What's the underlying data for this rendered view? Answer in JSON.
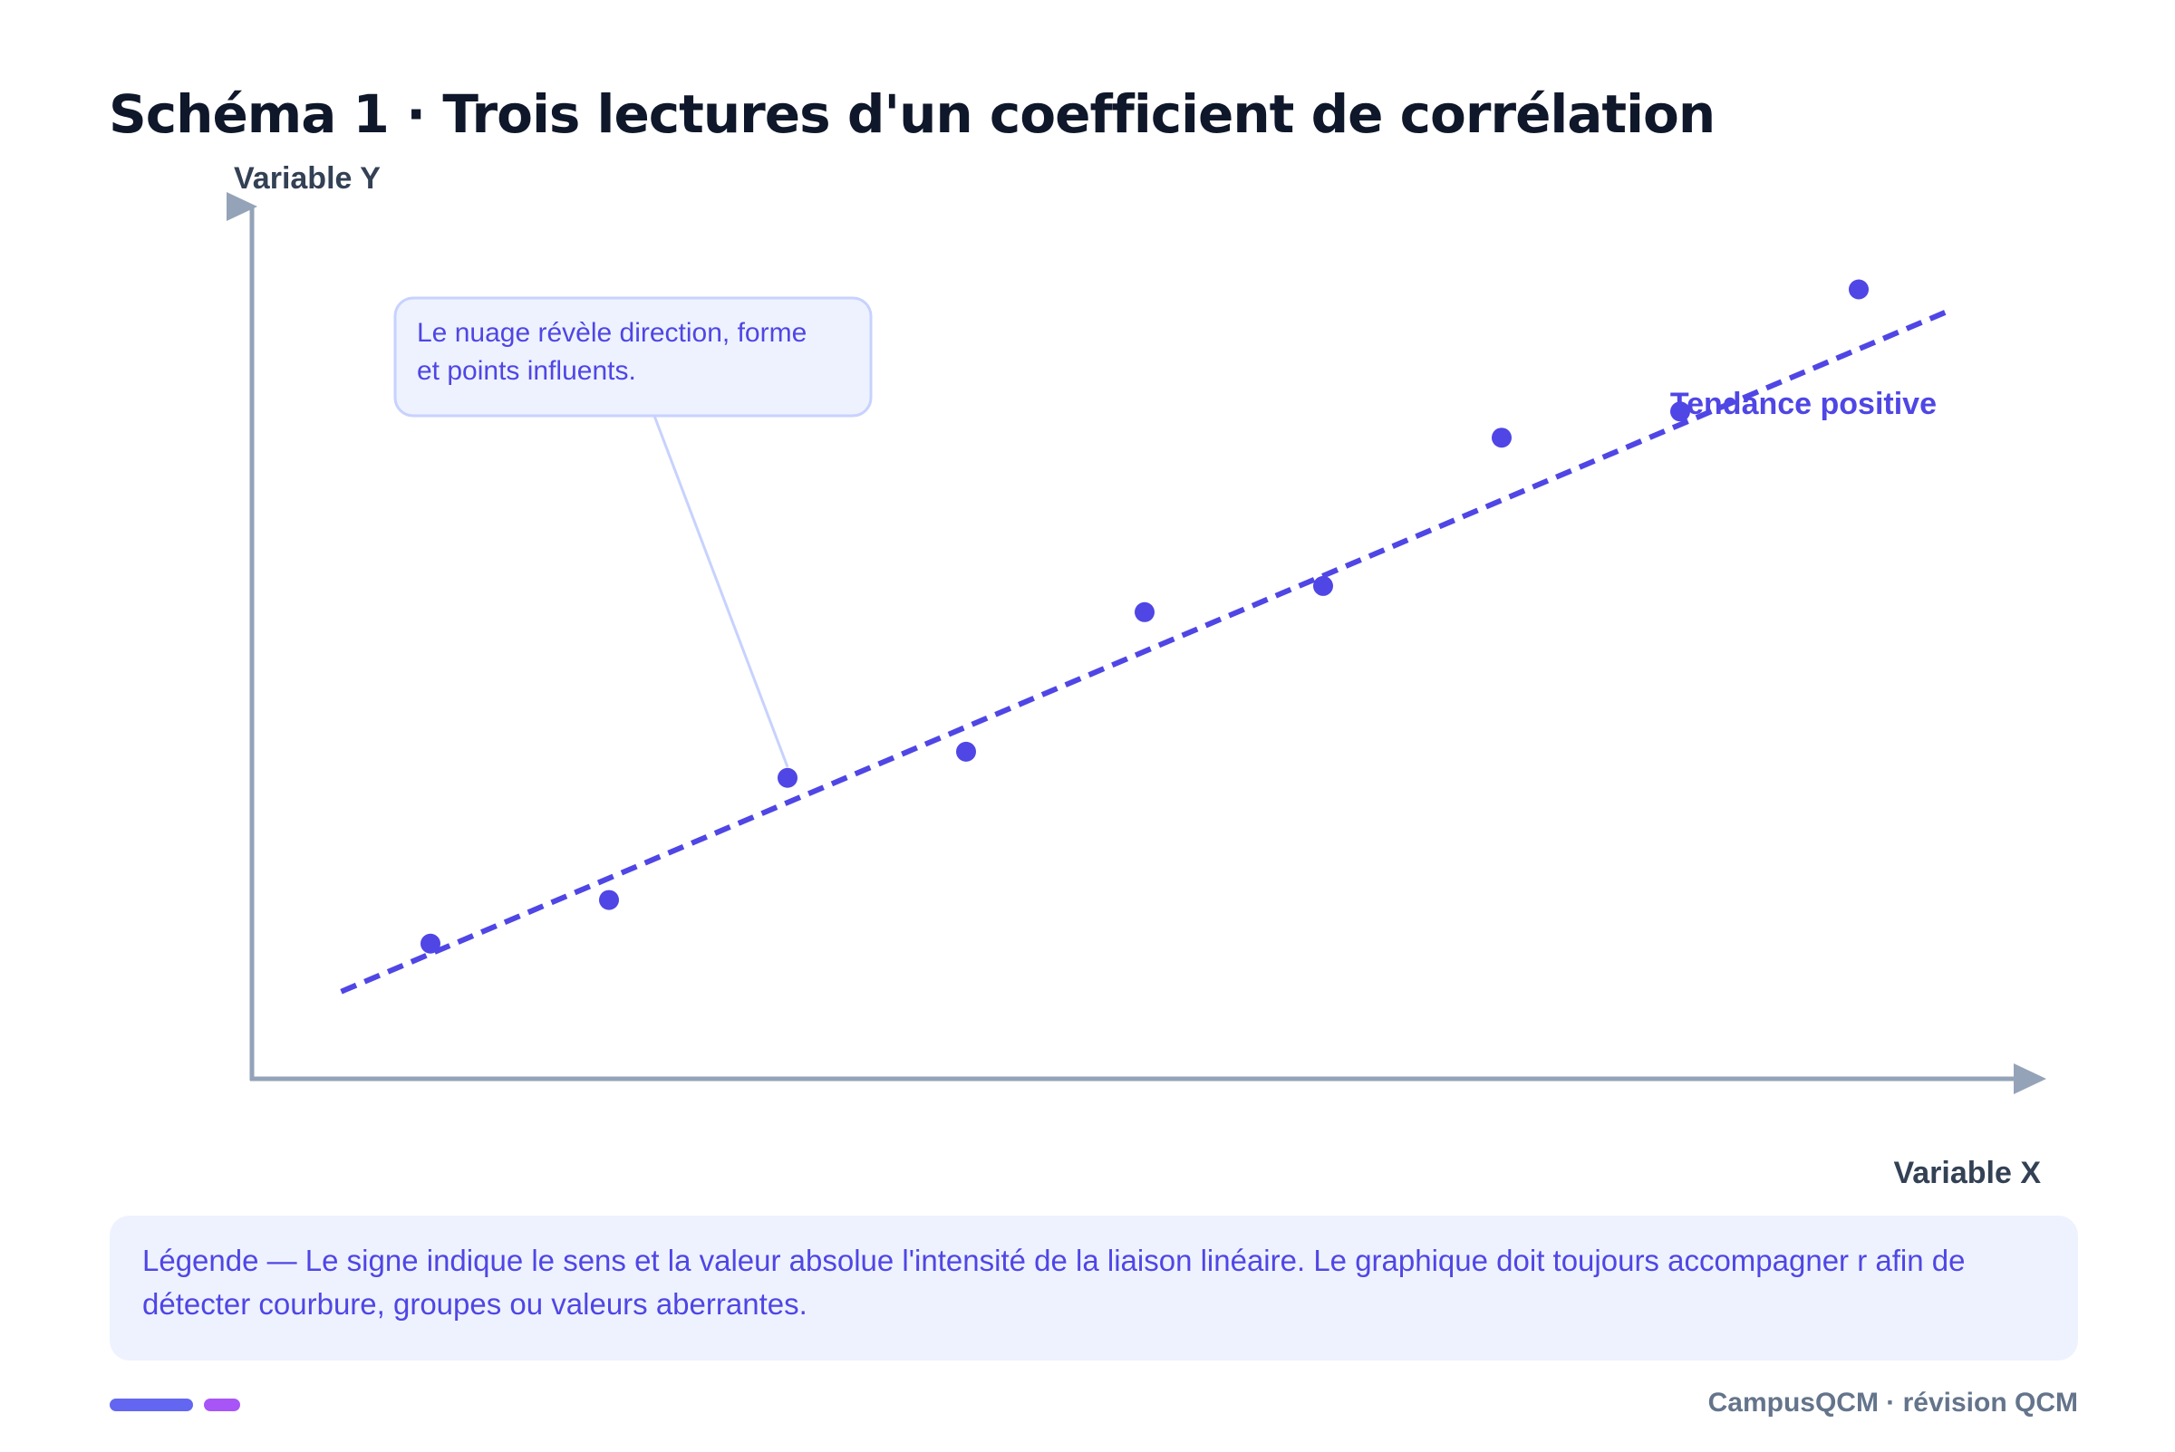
{
  "title": "Schéma 1 · Trois lectures d'un coefficient de corrélation",
  "chart_data": {
    "type": "scatter",
    "xlabel": "Variable X",
    "ylabel": "Variable Y",
    "xlim": [
      0,
      10
    ],
    "ylim": [
      0,
      10
    ],
    "grid": false,
    "points": [
      {
        "x": 1.0,
        "y": 1.55
      },
      {
        "x": 2.0,
        "y": 2.05
      },
      {
        "x": 3.0,
        "y": 3.45
      },
      {
        "x": 4.0,
        "y": 3.75
      },
      {
        "x": 5.0,
        "y": 5.35
      },
      {
        "x": 6.0,
        "y": 5.65
      },
      {
        "x": 7.0,
        "y": 7.35
      },
      {
        "x": 8.0,
        "y": 7.65
      },
      {
        "x": 9.0,
        "y": 9.05
      }
    ],
    "trend_line": {
      "x": [
        0.5,
        9.5
      ],
      "y": [
        1.0,
        8.8
      ],
      "label": "Tendance positive",
      "style": "dashed"
    },
    "annotation": {
      "lines": [
        "Le nuage révèle direction, forme",
        "et points influents."
      ],
      "target_point_index": 2
    },
    "colors": {
      "points": "#4f46e5",
      "trend": "#4f46e5",
      "axis": "#94a3b8",
      "callout_bg": "#eef2fe",
      "callout_border": "#c7d2fe",
      "leader": "#c7d2fe"
    }
  },
  "legend_text": "Légende — Le signe indique le sens et la valeur absolue l'intensité de la liaison linéaire. Le graphique doit toujours accompagner r afin de détecter courbure, groupes ou valeurs aberrantes.",
  "footer": {
    "brand": "CampusQCM · révision QCM"
  }
}
